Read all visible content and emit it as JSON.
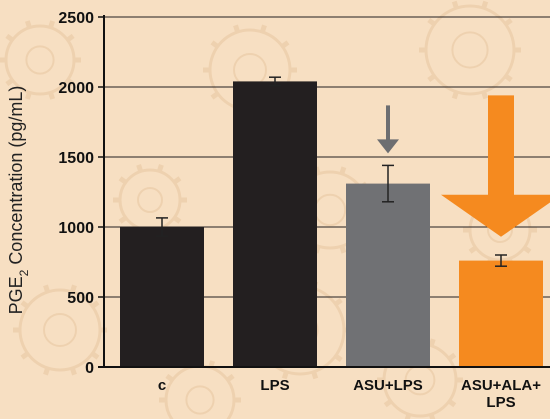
{
  "chart_data": {
    "type": "bar",
    "title": "",
    "ylabel": {
      "main": "PGE",
      "sub": "2",
      "rest": " Concentration (pg/mL)"
    },
    "categories": [
      {
        "lines": [
          "c"
        ]
      },
      {
        "lines": [
          "LPS"
        ]
      },
      {
        "lines": [
          "ASU+LPS"
        ]
      },
      {
        "lines": [
          "ASU+ALA+",
          "LPS"
        ]
      }
    ],
    "values": [
      1000,
      2040,
      1310,
      760
    ],
    "errors": [
      65,
      30,
      130,
      40
    ],
    "ylim": [
      0,
      2500
    ],
    "yticks": [
      0,
      500,
      1000,
      1500,
      2000,
      2500
    ],
    "grid": true,
    "colors": {
      "bars": [
        "#231f20",
        "#231f20",
        "#707174",
        "#f58a1f"
      ],
      "grid": "#231f20",
      "error": "#222222",
      "arrow_small": "#6d6e71",
      "arrow_large": "#f58a1f",
      "background": "#f7dfc2"
    },
    "annotations": [
      {
        "type": "down-arrow",
        "category": 2,
        "size": "small"
      },
      {
        "type": "down-arrow",
        "category": 3,
        "size": "large"
      }
    ]
  }
}
